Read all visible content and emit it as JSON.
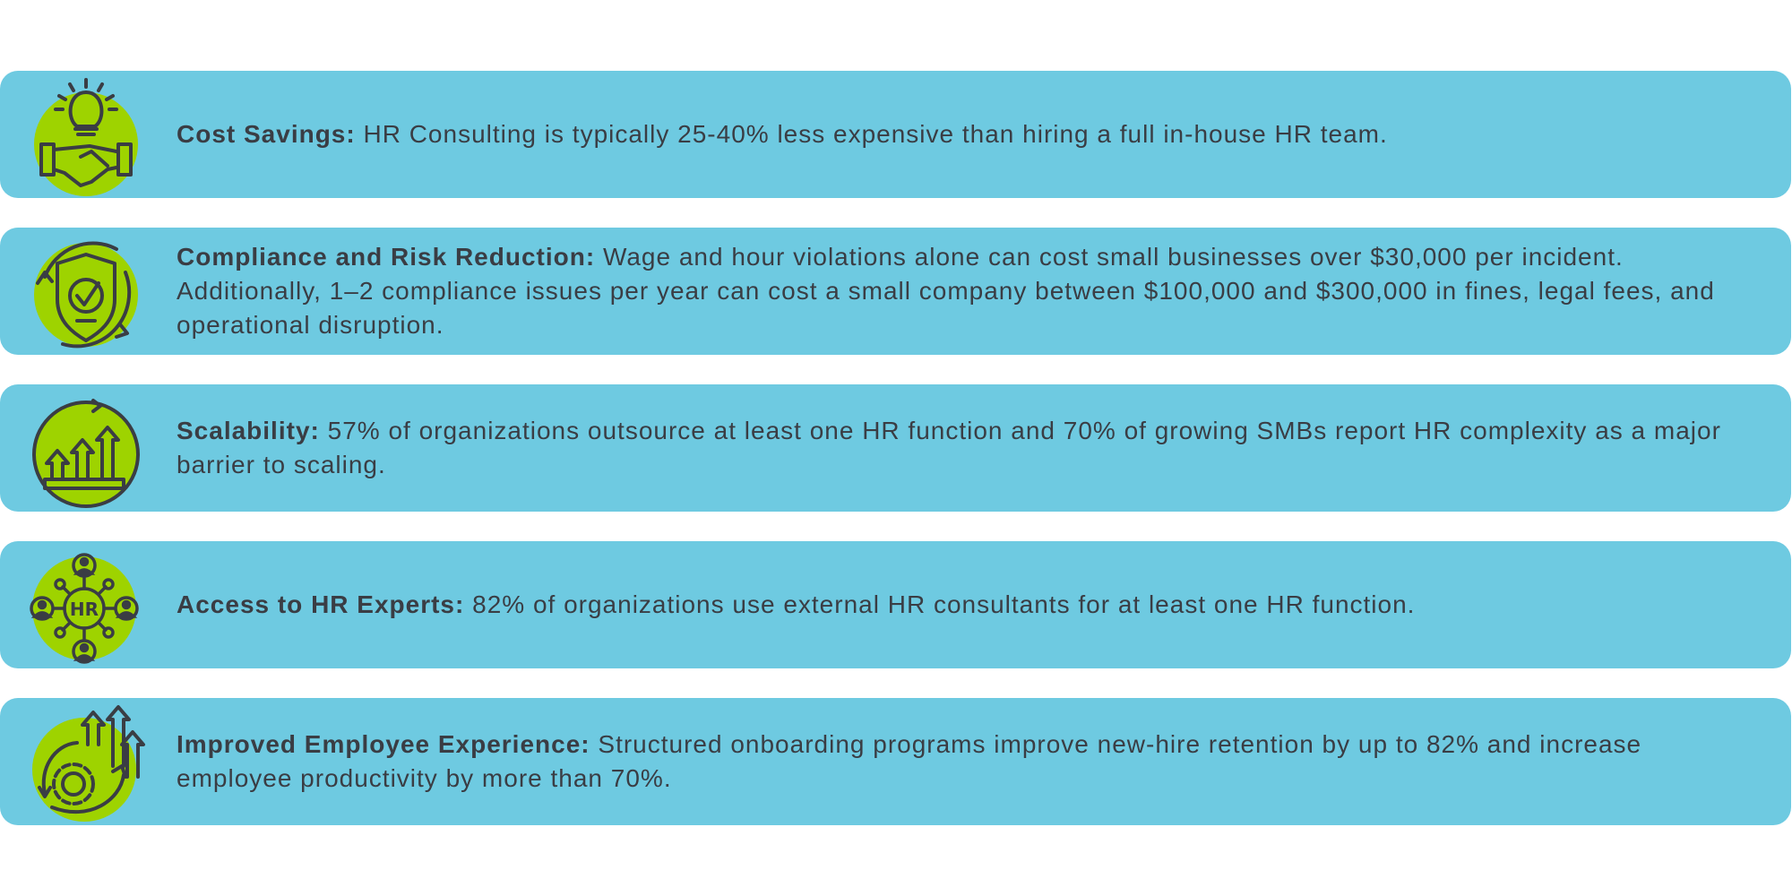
{
  "colors": {
    "card": "#6ECAE1",
    "icon_circle": "#9ED300",
    "icon_stroke": "#3a3d44",
    "text": "#3a3d44"
  },
  "items": [
    {
      "icon": "lightbulb-handshake-icon",
      "title": "Cost Savings:",
      "body": "HR Consulting is typically 25-40% less expensive than hiring a full in-house HR team."
    },
    {
      "icon": "shield-check-icon",
      "title": "Compliance and Risk Reduction:",
      "body": "Wage and hour violations alone can cost small businesses over $30,000 per incident. Additionally, 1–2 compliance issues per year can cost a small company between $100,000 and $300,000 in fines, legal fees, and operational disruption."
    },
    {
      "icon": "growth-arrows-icon",
      "title": "Scalability:",
      "body": "57% of organizations outsource at least one HR function and 70% of growing SMBs report HR complexity as a major barrier to scaling."
    },
    {
      "icon": "hr-network-icon",
      "title": "Access to HR Experts:",
      "body": "82% of organizations use external HR consultants for at least one HR function.",
      "icon_label": "HR"
    },
    {
      "icon": "gear-growth-icon",
      "title": "Improved Employee Experience:",
      "body": "Structured onboarding programs improve new-hire retention by up to 82% and increase employee productivity by more than 70%."
    }
  ]
}
